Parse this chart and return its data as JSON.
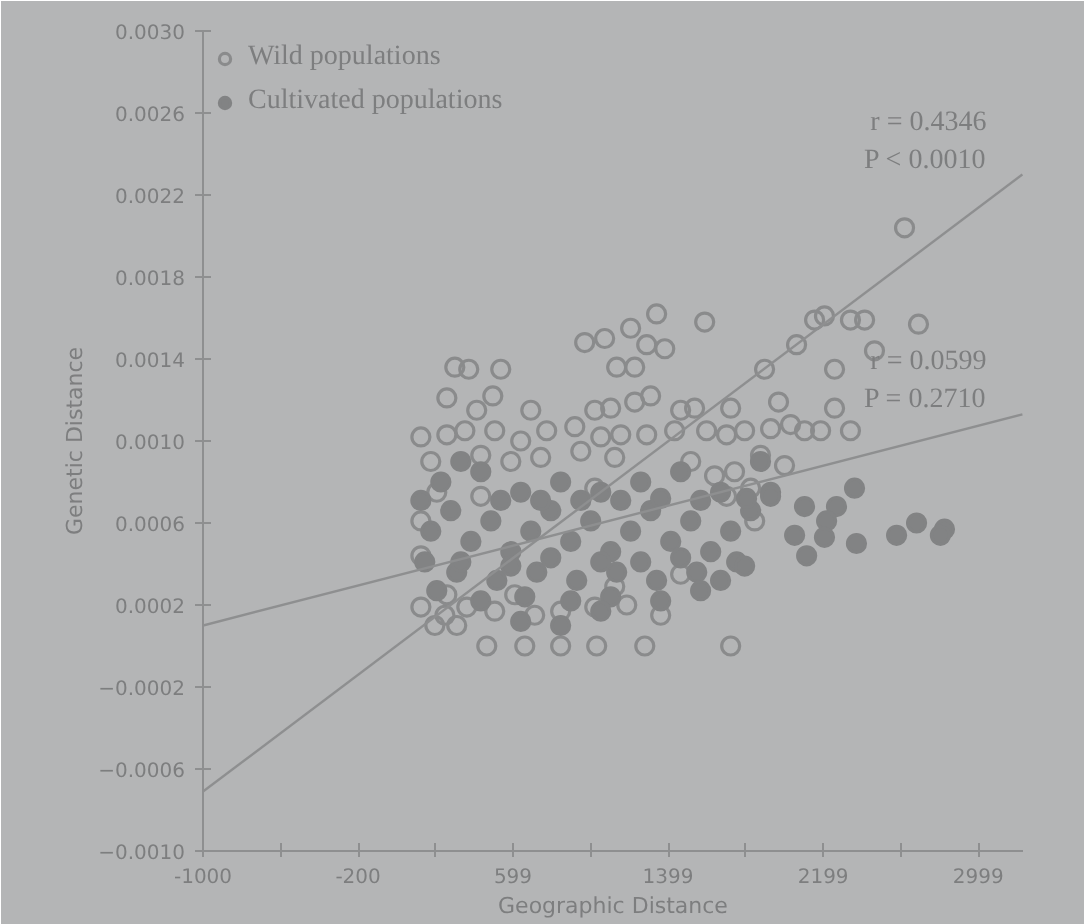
{
  "chart_data": {
    "type": "scatter",
    "xlabel": "Geographic Distance",
    "ylabel": "Genetic Distance",
    "legend": "top left",
    "grid": false,
    "xlim": [
      -1000,
      3230
    ],
    "ylim": [
      -0.001,
      0.003
    ],
    "xticks": [
      -1000,
      {
        "value": -600,
        "label": null
      },
      -200,
      {
        "value": 200,
        "label": null
      },
      599,
      {
        "value": 999,
        "label": null
      },
      1399,
      {
        "value": 1799,
        "label": null
      },
      2199,
      {
        "value": 2599,
        "label": null
      },
      2999
    ],
    "yticks": [
      {
        "value": -0.001,
        "label": "−0.0010"
      },
      {
        "value": -0.0006,
        "label": "−0.0006"
      },
      {
        "value": -0.0002,
        "label": "−0.0002"
      },
      {
        "value": 0.0002,
        "label": "0.0002"
      },
      {
        "value": 0.0006,
        "label": "0.0006"
      },
      {
        "value": 0.001,
        "label": "0.0010"
      },
      {
        "value": 0.0014,
        "label": "0.0014"
      },
      {
        "value": 0.0018,
        "label": "0.0018"
      },
      {
        "value": 0.0022,
        "label": "0.0022"
      },
      {
        "value": 0.0026,
        "label": "0.0026"
      },
      {
        "value": 0.003,
        "label": "0.0030"
      }
    ],
    "annotations": [
      "r = 0.4346",
      "P < 0.0010",
      "r = 0.0599",
      "P = 0.2710"
    ],
    "series": [
      {
        "name": "Wild populations",
        "marker": "circle",
        "color": "#8a8b8c",
        "x": [
          1340,
          1588,
          969,
          1072,
          1206,
          1289,
          1382,
          1134,
          1227,
          299,
          371,
          536,
          258,
          495,
          412,
          691,
          1021,
          1103,
          1227,
          1309,
          1464,
          1536,
          124,
          258,
          351,
          505,
          639,
          773,
          918,
          1052,
          1155,
          1289,
          1433,
          1598,
          1701,
          175,
          433,
          588,
          742,
          949,
          1124,
          1516,
          1639,
          206,
          433,
          1021,
          1701,
          124,
          248,
          361,
          505,
          711,
          845,
          1021,
          1186,
          1361,
          196,
          309,
          464,
          660,
          845,
          1031,
          1279,
          1722,
          258,
          608,
          1124,
          1464,
          124,
          2619,
          2155,
          2206,
          2340,
          2413,
          2691,
          2062,
          2464,
          1897,
          2258,
          1722,
          1794,
          1928,
          1969,
          2031,
          2103,
          2186,
          2258,
          2340,
          1742,
          1876,
          2000,
          1825,
          1846,
          124
        ],
        "values": [
          0.00162,
          0.00158,
          0.00148,
          0.0015,
          0.00155,
          0.00147,
          0.00145,
          0.00136,
          0.00136,
          0.00136,
          0.00135,
          0.00135,
          0.00121,
          0.00122,
          0.00115,
          0.00115,
          0.00115,
          0.00116,
          0.00119,
          0.00122,
          0.00115,
          0.00116,
          0.00102,
          0.00103,
          0.00105,
          0.00105,
          0.001,
          0.00105,
          0.00107,
          0.00102,
          0.00103,
          0.00103,
          0.00105,
          0.00105,
          0.00103,
          0.0009,
          0.00093,
          0.0009,
          0.00092,
          0.00095,
          0.00092,
          0.0009,
          0.00083,
          0.00075,
          0.00073,
          0.00077,
          0.00073,
          0.00019,
          0.00015,
          0.00019,
          0.00017,
          0.00015,
          0.00017,
          0.00019,
          0.0002,
          0.00015,
          0.0001,
          0.0001,
          0.0,
          0.0,
          0.0,
          0.0,
          0.0,
          0.0,
          0.00025,
          0.00025,
          0.00029,
          0.00035,
          0.00044,
          0.00204,
          0.00159,
          0.00161,
          0.00159,
          0.00159,
          0.00157,
          0.00147,
          0.00144,
          0.00135,
          0.00135,
          0.00116,
          0.00105,
          0.00106,
          0.00119,
          0.00108,
          0.00105,
          0.00105,
          0.00116,
          0.00105,
          0.00085,
          0.00093,
          0.00088,
          0.00077,
          0.00061,
          0.00061
        ]
      },
      {
        "name": "Cultivated populations",
        "marker": "circle",
        "color": "#828384",
        "x": [
          124,
          175,
          278,
          382,
          485,
          588,
          691,
          794,
          897,
          1000,
          1103,
          1206,
          1309,
          1413,
          1516,
          1619,
          1722,
          1825,
          1928,
          227,
          330,
          433,
          639,
          845,
          1052,
          1258,
          1464,
          1670,
          1876,
          144,
          309,
          516,
          722,
          928,
          1134,
          1340,
          1547,
          1753,
          206,
          433,
          660,
          897,
          1103,
          1361,
          1567,
          639,
          845,
          1052,
          330,
          588,
          794,
          1052,
          1258,
          1464,
          1670,
          536,
          742,
          949,
          1155,
          1361,
          1567,
          2361,
          2268,
          2103,
          2217,
          2052,
          2206,
          2114,
          2371,
          2578,
          2681,
          2825,
          2804,
          1804,
          1928,
          1794
        ],
        "values": [
          0.00071,
          0.00056,
          0.00066,
          0.00051,
          0.00061,
          0.00046,
          0.00056,
          0.00066,
          0.00051,
          0.00061,
          0.00046,
          0.00056,
          0.00066,
          0.00051,
          0.00061,
          0.00046,
          0.00056,
          0.00066,
          0.00075,
          0.0008,
          0.0009,
          0.00085,
          0.00075,
          0.0008,
          0.00075,
          0.0008,
          0.00085,
          0.00075,
          0.0009,
          0.00041,
          0.00036,
          0.00032,
          0.00036,
          0.00032,
          0.00036,
          0.00032,
          0.00036,
          0.00041,
          0.00027,
          0.00022,
          0.00024,
          0.00022,
          0.00024,
          0.00022,
          0.00027,
          0.00012,
          0.0001,
          0.00017,
          0.00041,
          0.00039,
          0.00043,
          0.00041,
          0.00041,
          0.00043,
          0.00032,
          0.00071,
          0.00071,
          0.00071,
          0.00071,
          0.00072,
          0.00071,
          0.00077,
          0.00068,
          0.00068,
          0.00061,
          0.00054,
          0.00053,
          0.00044,
          0.0005,
          0.00054,
          0.0006,
          0.00057,
          0.00054,
          0.00072,
          0.00073,
          0.00039
        ]
      },
      {
        "type": "line",
        "line_style": "solid",
        "color": "#8e8f90",
        "x": [
          -1000,
          3227
        ],
        "values": [
          -0.00071,
          0.0023
        ]
      },
      {
        "type": "line",
        "line_style": "solid",
        "color": "#8e8f90",
        "x": [
          -1000,
          3227
        ],
        "values": [
          0.0001,
          0.00113
        ]
      }
    ]
  }
}
